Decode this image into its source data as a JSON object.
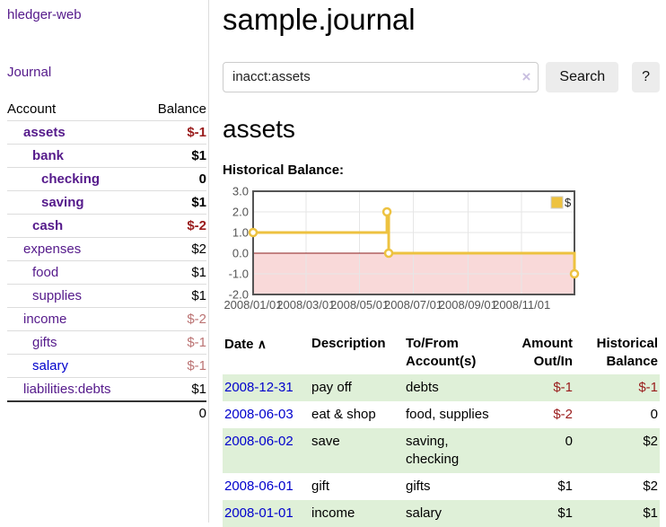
{
  "colors": {
    "accent_purple": "#551a8b",
    "link_blue": "#0000cc",
    "negative_red": "#991b1b",
    "negative_muted": "#bb7373",
    "stripe_green": "#dff0d8",
    "chart_gold": "#edc240",
    "chart_negative_fill": "#f9d9d9",
    "chart_zero_line": "#8b1b1b",
    "chart_border": "#545454",
    "grid_line": "#e6e6e6",
    "button_gray": "#ececec"
  },
  "sidebar": {
    "brand": "hledger-web",
    "journal_label": "Journal",
    "accounts_table": {
      "headers": [
        "Account",
        "Balance"
      ],
      "rows": [
        {
          "account": "assets",
          "balance": "$-1",
          "indent": 1,
          "bold": true,
          "balance_color": "negative"
        },
        {
          "account": "bank",
          "balance": "$1",
          "indent": 2,
          "bold": true,
          "balance_color": "normal"
        },
        {
          "account": "checking",
          "balance": "0",
          "indent": 3,
          "bold": true,
          "balance_color": "normal"
        },
        {
          "account": "saving",
          "balance": "$1",
          "indent": 3,
          "bold": true,
          "balance_color": "normal"
        },
        {
          "account": "cash",
          "balance": "$-2",
          "indent": 2,
          "bold": true,
          "balance_color": "negative"
        },
        {
          "account": "expenses",
          "balance": "$2",
          "indent": 1,
          "bold": false,
          "balance_color": "normal"
        },
        {
          "account": "food",
          "balance": "$1",
          "indent": 2,
          "bold": false,
          "balance_color": "normal"
        },
        {
          "account": "supplies",
          "balance": "$1",
          "indent": 2,
          "bold": false,
          "balance_color": "normal"
        },
        {
          "account": "income",
          "balance": "$-2",
          "indent": 1,
          "bold": false,
          "balance_color": "negative-muted"
        },
        {
          "account": "gifts",
          "balance": "$-1",
          "indent": 2,
          "bold": false,
          "balance_color": "negative-muted"
        },
        {
          "account": "salary",
          "balance": "$-1",
          "indent": 2,
          "bold": false,
          "balance_color": "negative-muted",
          "link_color": "blue"
        },
        {
          "account": "liabilities:debts",
          "balance": "$1",
          "indent": 1,
          "bold": false,
          "balance_color": "normal"
        }
      ],
      "total": "0"
    }
  },
  "header": {
    "title": "sample.journal"
  },
  "search": {
    "value": "inacct:assets",
    "clear_icon": "×",
    "button_label": "Search",
    "help_label": "?"
  },
  "main": {
    "account_heading": "assets"
  },
  "chart_data": {
    "type": "line",
    "title": "Historical Balance:",
    "step": true,
    "series": [
      {
        "name": "$",
        "color": "#edc240",
        "points": [
          [
            "2008-01-01",
            1
          ],
          [
            "2008-06-01",
            2
          ],
          [
            "2008-06-03",
            0
          ],
          [
            "2008-12-31",
            -1
          ]
        ]
      }
    ],
    "ylim": [
      -2,
      3
    ],
    "y_ticks": [
      "3.0",
      "2.0",
      "1.0",
      "0.0",
      "-1.0",
      "-2.0"
    ],
    "x_ticks": [
      "2008/01/01",
      "2008/03/01",
      "2008/05/01",
      "2008/07/01",
      "2008/09/01",
      "2008/11/01"
    ],
    "grid": true,
    "legend": {
      "label": "$",
      "position": "top-right"
    },
    "negative_region": {
      "from": -2,
      "to": 0,
      "color": "#f9d9d9"
    },
    "zero_line_color": "#8b1b1b"
  },
  "register": {
    "headers": {
      "date": "Date",
      "sort_icon": "∧",
      "description": "Description",
      "accounts": "To/From\nAccount(s)",
      "amount": "Amount\nOut/In",
      "balance": "Historical\nBalance"
    },
    "rows": [
      {
        "date": "2008-12-31",
        "description": "pay off",
        "accounts": "debts",
        "amount": "$-1",
        "amount_negative": true,
        "balance": "$-1",
        "balance_negative": true
      },
      {
        "date": "2008-06-03",
        "description": "eat & shop",
        "accounts": "food, supplies",
        "amount": "$-2",
        "amount_negative": true,
        "balance": "0",
        "balance_negative": false
      },
      {
        "date": "2008-06-02",
        "description": "save",
        "accounts": "saving,\nchecking",
        "amount": "0",
        "amount_negative": false,
        "balance": "$2",
        "balance_negative": false
      },
      {
        "date": "2008-06-01",
        "description": "gift",
        "accounts": "gifts",
        "amount": "$1",
        "amount_negative": false,
        "balance": "$2",
        "balance_negative": false
      },
      {
        "date": "2008-01-01",
        "description": "income",
        "accounts": "salary",
        "amount": "$1",
        "amount_negative": false,
        "balance": "$1",
        "balance_negative": false
      }
    ]
  }
}
